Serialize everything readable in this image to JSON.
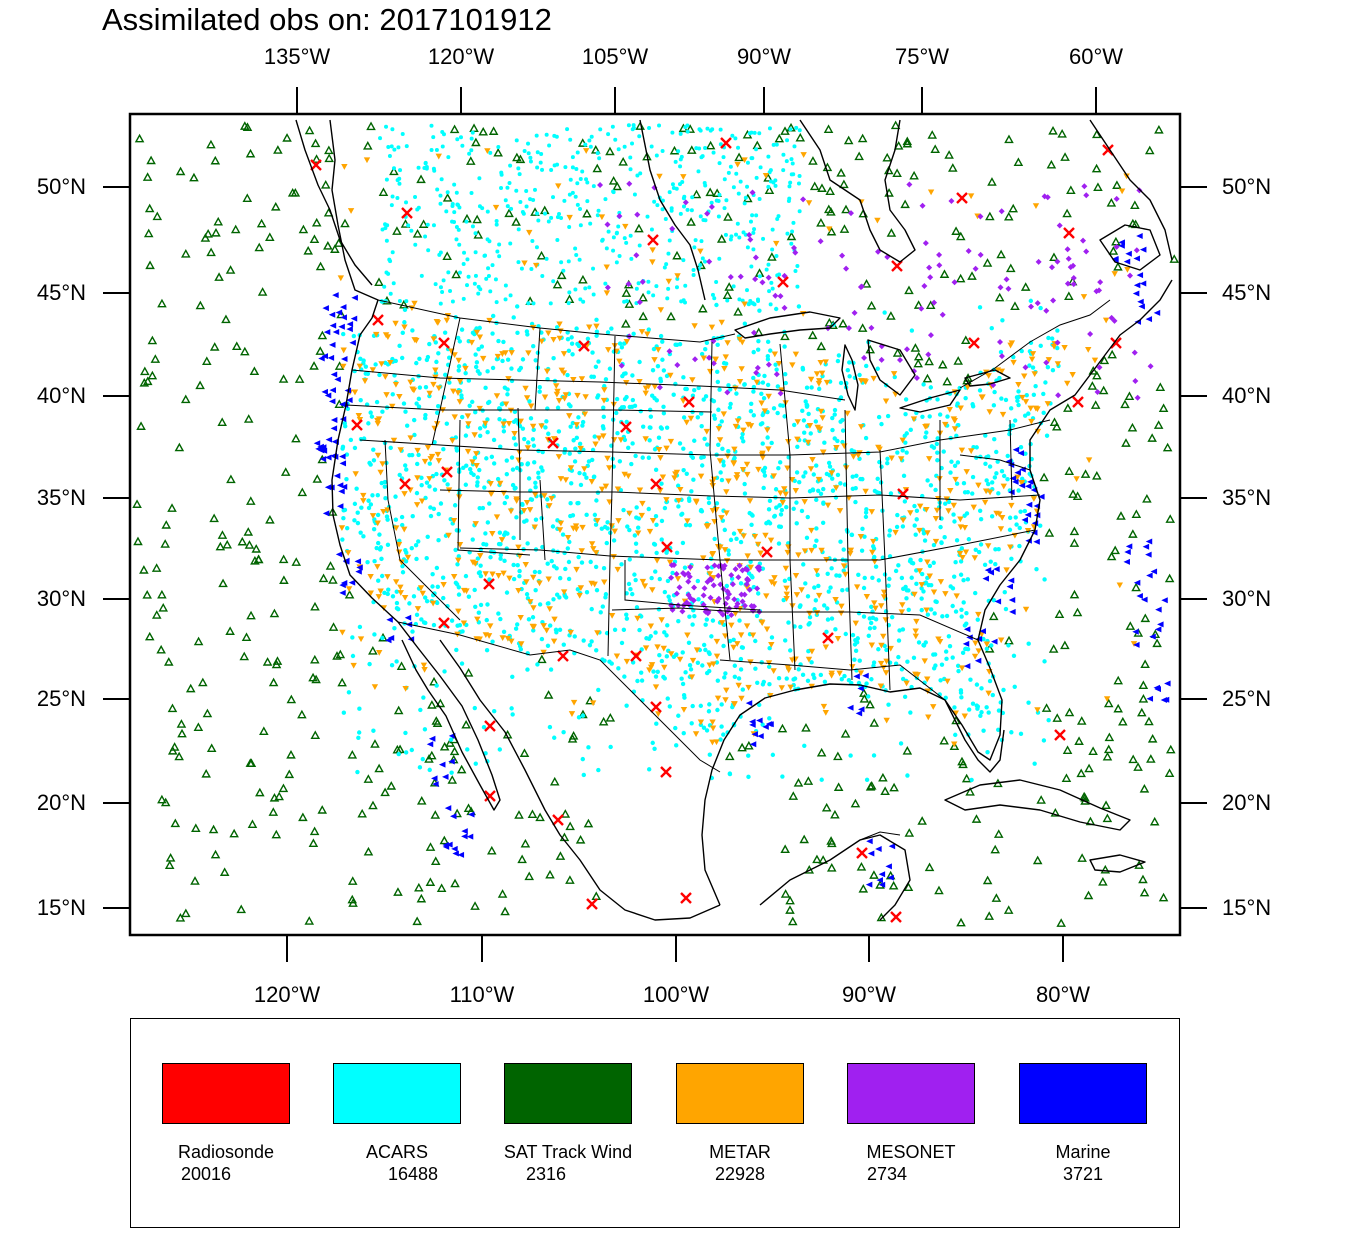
{
  "title": "Assimilated obs on: 2017101912",
  "axes": {
    "top_lon_labels": [
      "135°W",
      "120°W",
      "105°W",
      "90°W",
      "75°W",
      "60°W"
    ],
    "bottom_lon_labels": [
      "120°W",
      "110°W",
      "100°W",
      "90°W",
      "80°W"
    ],
    "lat_labels": [
      "50°N",
      "45°N",
      "40°N",
      "35°N",
      "30°N",
      "25°N",
      "20°N",
      "15°N"
    ]
  },
  "legend": [
    {
      "name": "Radiosonde",
      "count": "20016",
      "color": "#ff0000",
      "marker": "x-cross-icon"
    },
    {
      "name": "ACARS",
      "count": "16488",
      "color": "#00ffff",
      "marker": "dot-icon"
    },
    {
      "name": "SAT Track Wind",
      "count": "2316",
      "color": "#006400",
      "marker": "triangle-up-icon"
    },
    {
      "name": "METAR",
      "count": "22928",
      "color": "#ffa500",
      "marker": "triangle-down-icon"
    },
    {
      "name": "MESONET",
      "count": "2734",
      "color": "#a020f0",
      "marker": "diamond-icon"
    },
    {
      "name": "Marine",
      "count": "3721",
      "color": "#0000ff",
      "marker": "triangle-left-icon"
    }
  ]
}
